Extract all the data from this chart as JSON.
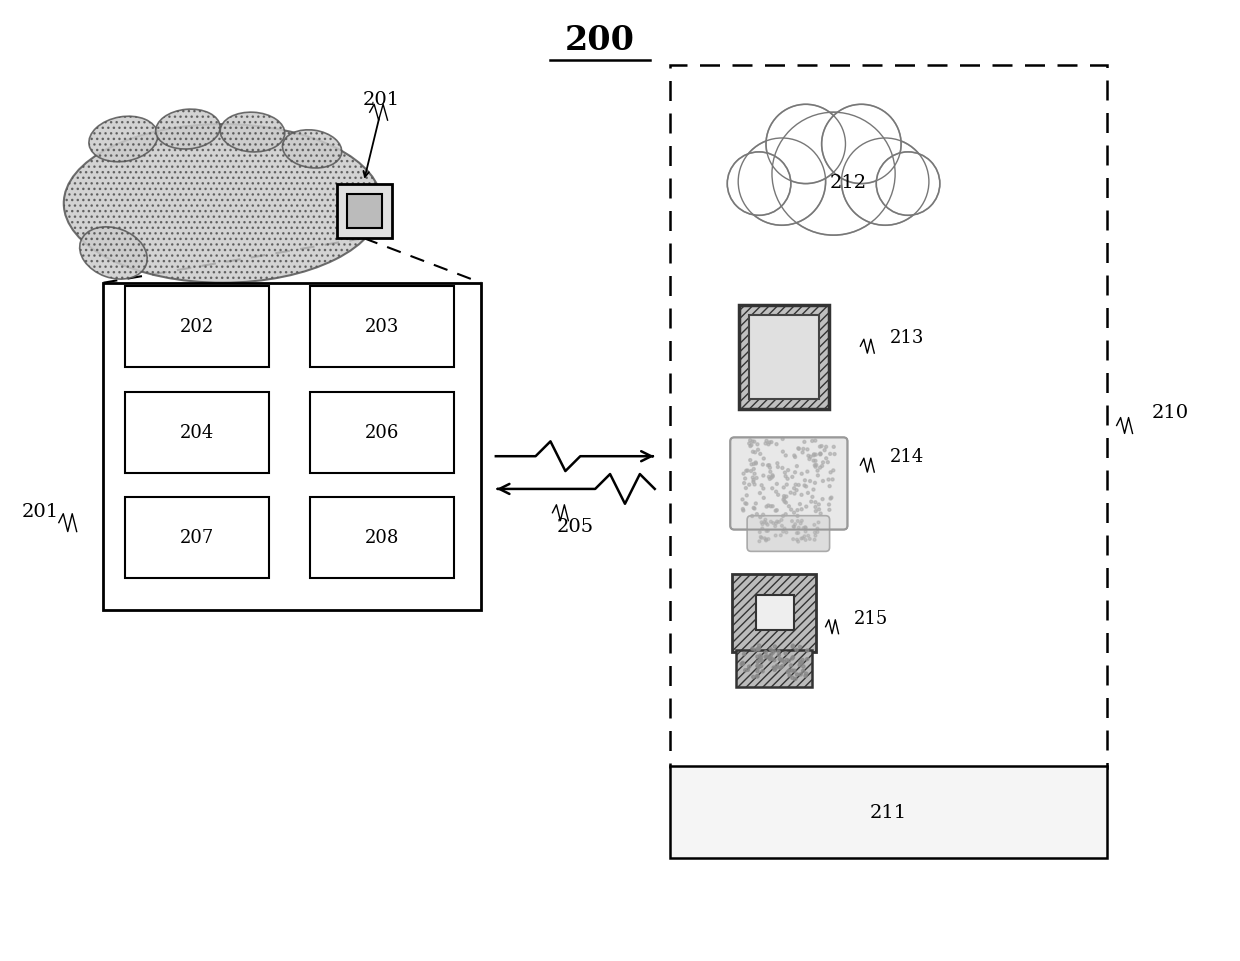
{
  "title": "200",
  "bg_color": "#ffffff",
  "fig_width": 12.4,
  "fig_height": 9.62,
  "dpi": 100,
  "labels": {
    "title": "200",
    "label_201_top": "201",
    "label_201_left": "201",
    "label_202": "202",
    "label_203": "203",
    "label_204": "204",
    "label_206": "206",
    "label_207": "207",
    "label_208": "208",
    "label_205": "205",
    "label_210": "210",
    "label_211": "211",
    "label_212": "212",
    "label_213": "213",
    "label_214": "214",
    "label_215": "215"
  }
}
